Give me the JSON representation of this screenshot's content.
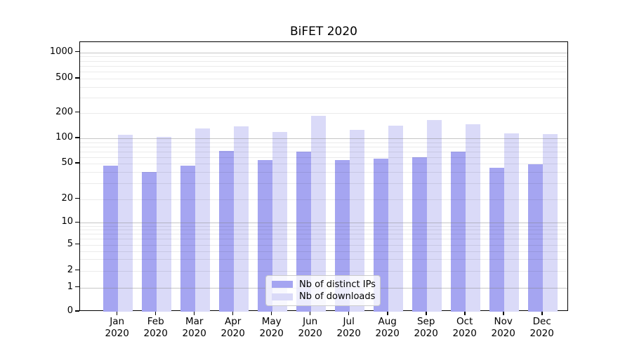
{
  "chart_data": {
    "type": "bar",
    "title": "BiFET 2020",
    "categories": [
      "Jan",
      "Feb",
      "Mar",
      "Apr",
      "May",
      "Jun",
      "Jul",
      "Aug",
      "Sep",
      "Oct",
      "Nov",
      "Dec"
    ],
    "x_tick_year": "2020",
    "series": [
      {
        "name": "Nb of distinct IPs",
        "color": "#a5a5f1",
        "values": [
          47,
          40,
          47,
          71,
          55,
          70,
          55,
          57,
          60,
          69,
          45,
          49
        ]
      },
      {
        "name": "Nb of downloads",
        "color": "#dadaf8",
        "values": [
          110,
          103,
          131,
          137,
          119,
          183,
          125,
          140,
          163,
          145,
          114,
          113
        ]
      }
    ],
    "y_ticks": [
      0,
      1,
      2,
      5,
      10,
      20,
      50,
      100,
      200,
      500,
      1000
    ],
    "y_scale": "symlog",
    "ylim": [
      0,
      1300
    ],
    "xlabel": "",
    "ylabel": "",
    "grid": "horizontal, major and minor",
    "legend_position": "lower center"
  },
  "colors": {
    "background": "#ffffff",
    "spine": "#000000",
    "major_grid": "#c6c6c6",
    "minor_grid": "#ebebeb",
    "text": "#000000"
  }
}
